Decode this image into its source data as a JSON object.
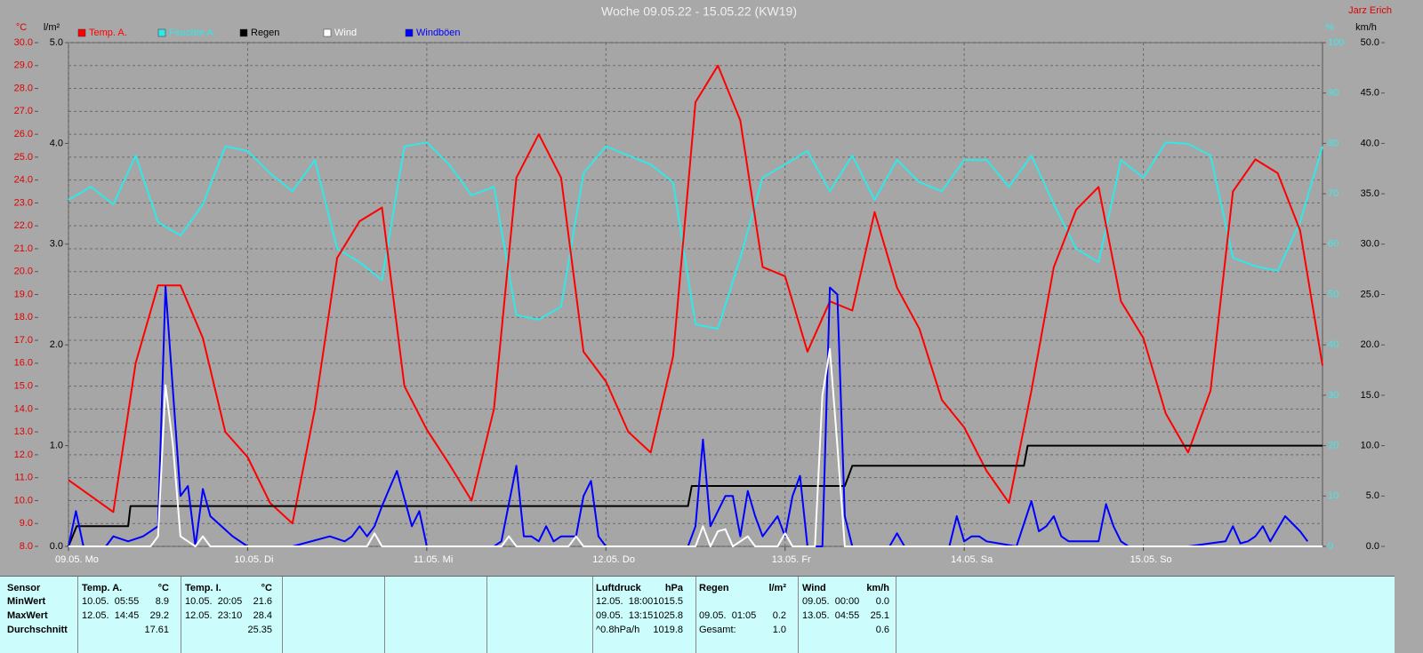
{
  "chart_data": {
    "type": "line",
    "title": "Woche 09.05.22 - 15.05.22 (KW19)",
    "author": "Jarz Erich",
    "y_unit": "°C",
    "y2_unit": "l/m²",
    "y3_unit": "%",
    "y4_unit": "km/h",
    "xlim": [
      0,
      168
    ],
    "xticks": [
      {
        "value": 0,
        "label": "09.05. Mo"
      },
      {
        "value": 24,
        "label": "10.05. Di"
      },
      {
        "value": 48,
        "label": "11.05. Mi"
      },
      {
        "value": 72,
        "label": "12.05. Do"
      },
      {
        "value": 96,
        "label": "13.05. Fr"
      },
      {
        "value": 120,
        "label": "14.05. Sa"
      },
      {
        "value": 144,
        "label": "15.05. So"
      }
    ],
    "ylim": [
      8,
      30
    ],
    "yticks": [
      {
        "value": 8,
        "label": "8.0"
      },
      {
        "value": 9,
        "label": "9.0"
      },
      {
        "value": 10,
        "label": "10.0"
      },
      {
        "value": 11,
        "label": "11.0"
      },
      {
        "value": 12,
        "label": "12.0"
      },
      {
        "value": 13,
        "label": "13.0"
      },
      {
        "value": 14,
        "label": "14.0"
      },
      {
        "value": 15,
        "label": "15.0"
      },
      {
        "value": 16,
        "label": "16.0"
      },
      {
        "value": 17,
        "label": "17.0"
      },
      {
        "value": 18,
        "label": "18.0"
      },
      {
        "value": 19,
        "label": "19.0"
      },
      {
        "value": 20,
        "label": "20.0"
      },
      {
        "value": 21,
        "label": "21.0"
      },
      {
        "value": 22,
        "label": "22.0"
      },
      {
        "value": 23,
        "label": "23.0"
      },
      {
        "value": 24,
        "label": "24.0"
      },
      {
        "value": 25,
        "label": "25.0"
      },
      {
        "value": 26,
        "label": "26.0"
      },
      {
        "value": 27,
        "label": "27.0"
      },
      {
        "value": 28,
        "label": "28.0"
      },
      {
        "value": 29,
        "label": "29.0"
      },
      {
        "value": 30,
        "label": "30.0"
      }
    ],
    "y2lim": [
      0,
      5
    ],
    "y2ticks": [
      {
        "value": 0,
        "label": "0.0"
      },
      {
        "value": 1,
        "label": "1.0"
      },
      {
        "value": 2,
        "label": "2.0"
      },
      {
        "value": 3,
        "label": "3.0"
      },
      {
        "value": 4,
        "label": "4.0"
      },
      {
        "value": 5,
        "label": "5.0"
      }
    ],
    "y3lim": [
      0,
      100
    ],
    "y3ticks": [
      0,
      10,
      20,
      30,
      40,
      50,
      60,
      70,
      80,
      90,
      100
    ],
    "y4lim": [
      0,
      50
    ],
    "y4ticks": [
      {
        "value": 0,
        "label": "0.0"
      },
      {
        "value": 5,
        "label": "5.0"
      },
      {
        "value": 10,
        "label": "10.0"
      },
      {
        "value": 15,
        "label": "15.0"
      },
      {
        "value": 20,
        "label": "20.0"
      },
      {
        "value": 25,
        "label": "25.0"
      },
      {
        "value": 30,
        "label": "30.0"
      },
      {
        "value": 35,
        "label": "35.0"
      },
      {
        "value": 40,
        "label": "40.0"
      },
      {
        "value": 45,
        "label": "45.0"
      },
      {
        "value": 50,
        "label": "50.0"
      }
    ],
    "grid": true,
    "x": [
      0,
      3,
      6,
      9,
      12,
      15,
      18,
      21,
      24,
      27,
      30,
      33,
      36,
      39,
      42,
      45,
      48,
      51,
      54,
      57,
      60,
      63,
      66,
      69,
      72,
      75,
      78,
      81,
      84,
      87,
      90,
      93,
      96,
      99,
      102,
      105,
      108,
      111,
      114,
      117,
      120,
      123,
      126,
      129,
      132,
      135,
      138,
      141,
      144,
      147,
      150,
      153,
      156,
      159,
      162,
      165,
      168
    ],
    "series": [
      {
        "name": "Temp. A.",
        "color": "#ff0000",
        "axis": "y",
        "values": [
          10.9,
          10.2,
          9.5,
          16.0,
          19.4,
          19.4,
          17.1,
          13.0,
          11.9,
          9.9,
          9.0,
          14.0,
          20.6,
          22.2,
          22.8,
          15.0,
          13.1,
          11.6,
          10.0,
          14.0,
          24.1,
          26.0,
          24.1,
          16.5,
          15.2,
          13.0,
          12.1,
          16.3,
          27.4,
          29.0,
          26.6,
          20.2,
          19.8,
          16.5,
          18.7,
          18.3,
          22.6,
          19.3,
          17.5,
          14.4,
          13.2,
          11.3,
          9.9,
          14.8,
          20.2,
          22.7,
          23.7,
          18.7,
          17.1,
          13.8,
          12.1,
          14.8,
          23.5,
          24.9,
          24.3,
          21.8,
          15.9
        ]
      },
      {
        "name": "Feuchte A.",
        "color": "#30e8e8",
        "axis": "y3",
        "values": [
          68.8,
          71.4,
          67.9,
          77.6,
          64.4,
          61.7,
          67.9,
          79.4,
          78.5,
          74.1,
          70.5,
          76.7,
          59.1,
          56.4,
          52.9,
          79.4,
          80.2,
          75.8,
          69.7,
          71.4,
          45.9,
          45.0,
          47.6,
          74.1,
          79.4,
          77.6,
          75.8,
          72.3,
          44.1,
          43.2,
          57.3,
          73.2,
          75.8,
          78.5,
          70.5,
          77.6,
          68.8,
          76.7,
          72.3,
          70.5,
          76.7,
          76.7,
          71.4,
          77.6,
          67.9,
          59.1,
          56.4,
          76.7,
          73.2,
          80.2,
          79.9,
          77.6,
          57.3,
          55.6,
          54.7,
          64.4,
          79.4
        ]
      },
      {
        "name": "Regen",
        "color": "#000000",
        "axis": "y2",
        "x": [
          0,
          1.1,
          8,
          8.3,
          83,
          83.5,
          104,
          105,
          128,
          128.5,
          168
        ],
        "values": [
          0,
          0.2,
          0.2,
          0.4,
          0.4,
          0.6,
          0.6,
          0.8,
          0.8,
          1.0,
          1.0
        ]
      },
      {
        "name": "Wind",
        "color": "#ffffff",
        "axis": "y4",
        "x": [
          0,
          11,
          12,
          13,
          14,
          15,
          16,
          17,
          18,
          19,
          40,
          41,
          42,
          58,
          59,
          60,
          67,
          68,
          69,
          84,
          85,
          86,
          87,
          88,
          89,
          91,
          92,
          95,
          96,
          97,
          100,
          101,
          102,
          103,
          104,
          168
        ],
        "values": [
          0,
          0,
          1,
          16,
          10,
          1,
          0.5,
          0,
          1,
          0,
          0,
          1.3,
          0,
          0,
          1,
          0,
          0,
          1,
          0,
          0,
          2,
          0,
          1.5,
          1.7,
          0,
          1,
          0,
          0,
          1.3,
          0,
          0,
          15,
          19.6,
          10,
          0,
          0
        ]
      },
      {
        "name": "Windböen",
        "color": "#0000ff",
        "axis": "y4",
        "x": [
          0,
          1,
          2,
          5,
          6,
          8,
          10,
          12,
          13,
          15,
          16,
          17,
          18,
          19,
          22,
          24,
          30,
          35,
          37,
          38,
          39,
          40,
          41,
          42,
          44,
          46,
          47,
          48,
          57,
          58,
          60,
          61,
          62,
          63,
          64,
          65,
          66,
          68,
          69,
          70,
          71,
          72,
          83,
          84,
          85,
          86,
          88,
          89,
          90,
          91,
          92,
          93,
          94,
          95,
          96,
          97,
          98,
          99,
          101,
          102,
          103,
          104,
          105,
          110,
          111,
          112,
          118,
          119,
          120,
          121,
          122,
          123,
          127,
          129,
          130,
          131,
          132,
          133,
          134,
          135,
          137,
          138,
          139,
          140,
          141,
          142,
          150,
          155,
          156,
          157,
          158,
          159,
          160,
          161,
          163,
          165,
          166
        ],
        "values": [
          0,
          3.5,
          0,
          0,
          1,
          0.5,
          1,
          2,
          25.8,
          5,
          6,
          0,
          5.7,
          3,
          1,
          0,
          0,
          1,
          0.5,
          1,
          2,
          1,
          2,
          4,
          7.5,
          2,
          3.5,
          0,
          0,
          0.5,
          8,
          1,
          1,
          0.5,
          2,
          0.5,
          1,
          1,
          5,
          6.5,
          1,
          0,
          0,
          2,
          10.6,
          2,
          5,
          5,
          1,
          5.5,
          3,
          1,
          2,
          3,
          1,
          5,
          7,
          0,
          0,
          25.7,
          25,
          3,
          0,
          0,
          1.3,
          0,
          0,
          3,
          0.5,
          1,
          1,
          0.5,
          0,
          4.5,
          1.5,
          2,
          3,
          1,
          0.5,
          0.5,
          0.5,
          0.5,
          4.2,
          2,
          0.5,
          0,
          0,
          0.5,
          2,
          0.3,
          0.5,
          1,
          2,
          0.5,
          3,
          1.5,
          0.5
        ]
      }
    ]
  },
  "stats": {
    "row_labels": [
      "Sensor",
      "MinWert",
      "MaxWert",
      "Durchschnitt"
    ],
    "sensors": [
      {
        "name": "Temp. A.",
        "unit": "°C",
        "min_time": "10.05.  05:55",
        "min": "8.9",
        "max_time": "12.05.  14:45",
        "max": "29.2",
        "avg": "17.61"
      },
      {
        "name": "Temp. I.",
        "unit": "°C",
        "min_time": "10.05.  20:05",
        "min": "21.6",
        "max_time": "12.05.  23:10",
        "max": "28.4",
        "avg": "25.35"
      },
      {
        "name": "Luftdruck",
        "unit": "hPa",
        "min_time": "12.05.  18:00",
        "min": "1015.5",
        "max_time": "09.05.  13:15",
        "max": "1025.8",
        "avg_note": "^0.8hPa/h",
        "avg": "1019.8"
      },
      {
        "name": "Regen",
        "unit": "l/m²",
        "max_time": "09.05.  01:05",
        "max": "0.2",
        "avg_note": "Gesamt:",
        "avg": "1.0"
      },
      {
        "name": "Wind",
        "unit": "km/h",
        "min_time": "09.05.  00:00",
        "min": "0.0",
        "max_time": "13.05.  04:55",
        "max": "25.1",
        "avg": "0.6"
      }
    ]
  }
}
